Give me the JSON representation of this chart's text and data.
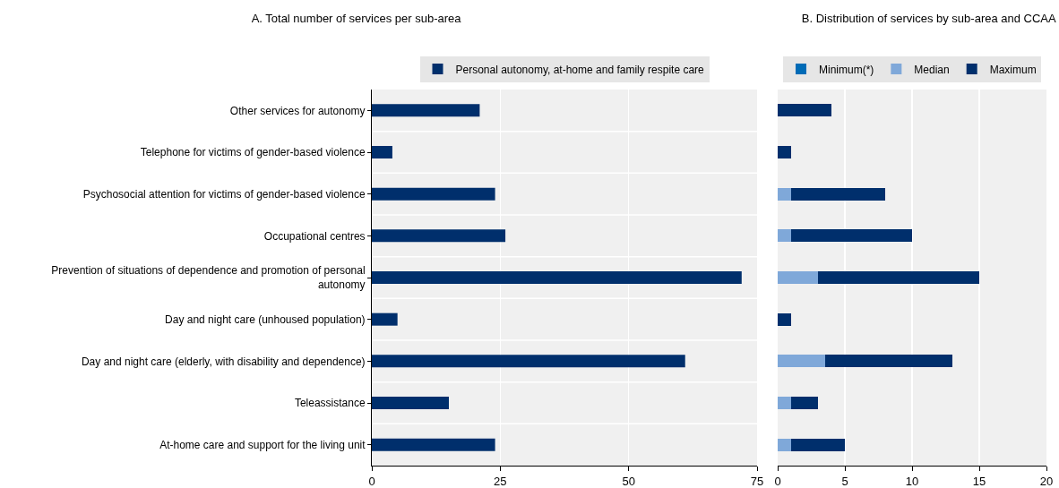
{
  "chart_data": [
    {
      "type": "bar",
      "orientation": "horizontal",
      "title": "A. Total number of services per sub-area",
      "categories": [
        "Other services for autonomy",
        "Telephone for victims of gender-based violence",
        "Psychosocial attention for victims of gender-based violence",
        "Occupational centres",
        "Prevention of situations of dependence and promotion of personal autonomy",
        "Day and night care (unhoused population)",
        "Day and night care (elderly, with disability and dependence)",
        "Teleassistance",
        "At-home care and support for the living unit"
      ],
      "series": [
        {
          "name": "Personal autonomy, at-home and family respite care",
          "color": "#002f6c",
          "values": [
            21,
            4,
            24,
            26,
            72,
            5,
            61,
            15,
            24
          ]
        }
      ],
      "xlim": [
        0,
        75
      ],
      "xticks": [
        0,
        25,
        50,
        75
      ],
      "grid": "x",
      "legend": "top"
    },
    {
      "type": "bar",
      "orientation": "horizontal",
      "stacked": true,
      "title": "B. Distribution of services by sub-area and CCAA",
      "categories": [
        null,
        null,
        null,
        null,
        null,
        null,
        null,
        null,
        null
      ],
      "series": [
        {
          "name": "Minimum(*)",
          "color": "#006bb6",
          "values": [
            0,
            0,
            0,
            0,
            0,
            0,
            0,
            0,
            0
          ]
        },
        {
          "name": "Median",
          "color": "#7fa8d9",
          "values": [
            0,
            0,
            1,
            1,
            3,
            0,
            3.5,
            1,
            1
          ]
        },
        {
          "name": "Maximum",
          "color": "#002f6c",
          "values": [
            4,
            1,
            7,
            9,
            12,
            1,
            9.5,
            2,
            4
          ]
        }
      ],
      "xlim": [
        0,
        20
      ],
      "xticks": [
        0,
        5,
        10,
        15,
        20
      ],
      "grid": "x",
      "legend": "top",
      "tick_labels": "x"
    }
  ]
}
